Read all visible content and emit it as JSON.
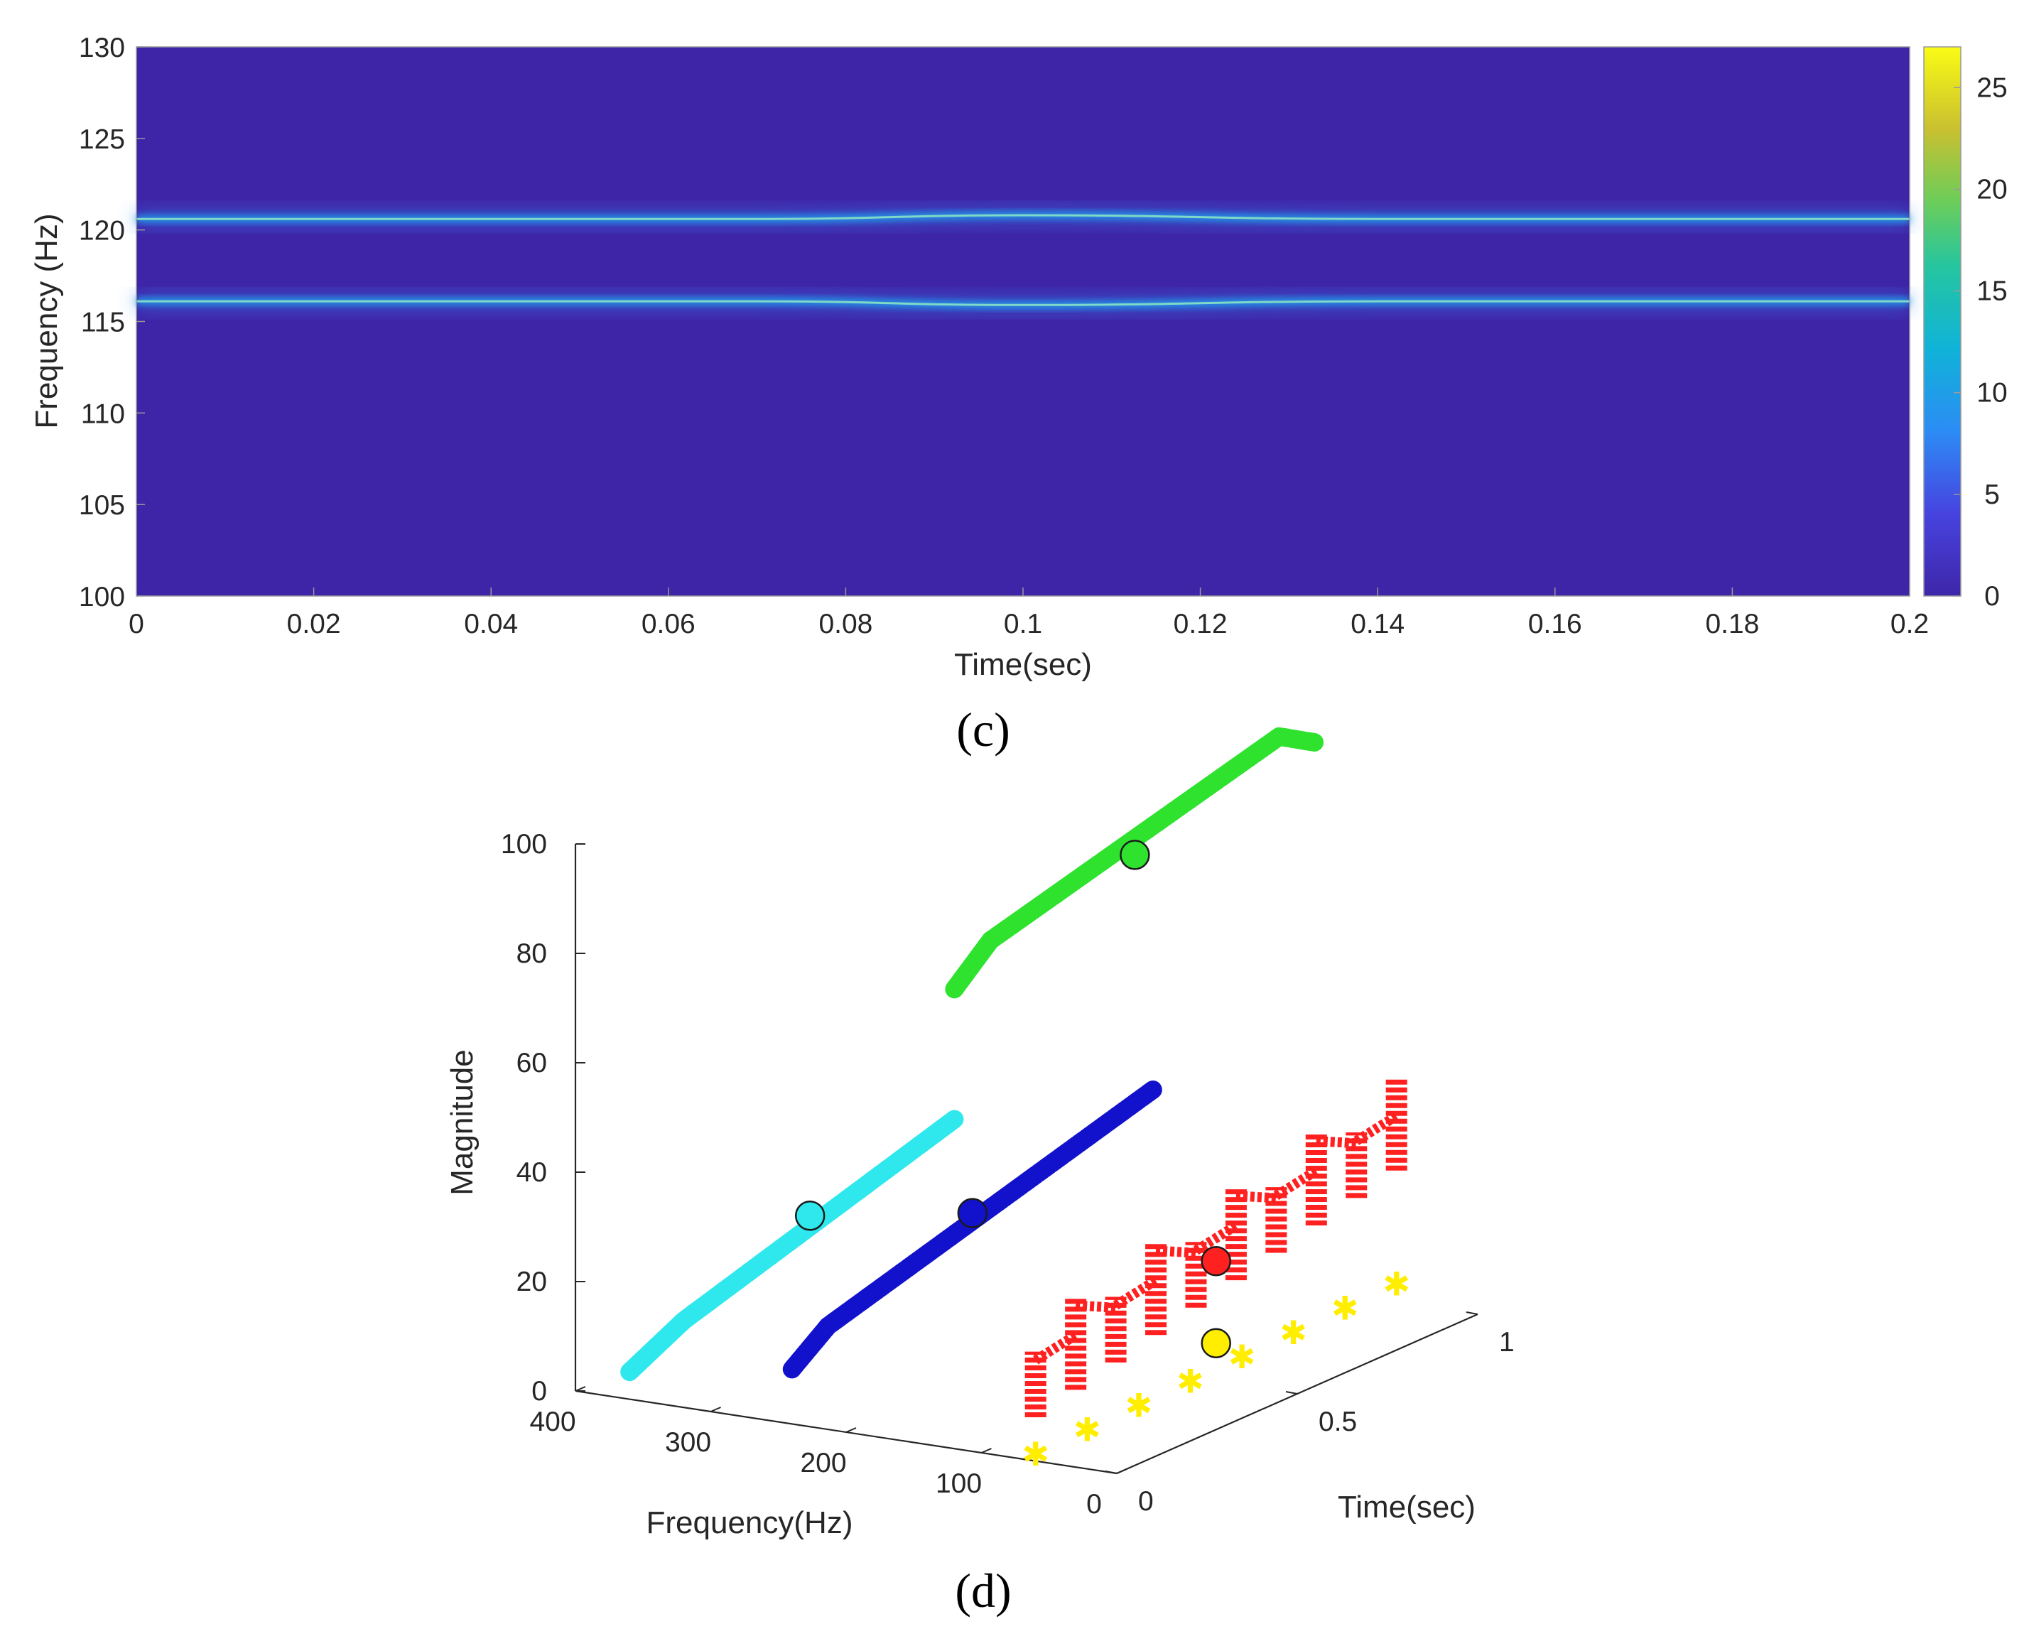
{
  "chart_data": [
    {
      "panel": "(c)",
      "type": "heatmap",
      "xlabel": "Time(sec)",
      "ylabel": "Frequency (Hz)",
      "xlim": [
        0,
        0.2
      ],
      "ylim": [
        100,
        130
      ],
      "x_ticks": [
        "0",
        "0.02",
        "0.04",
        "0.06",
        "0.08",
        "0.1",
        "0.12",
        "0.14",
        "0.16",
        "0.18",
        "0.2"
      ],
      "y_ticks": [
        "100",
        "105",
        "110",
        "115",
        "120",
        "125",
        "130"
      ],
      "colorbar": {
        "range": [
          0,
          27
        ],
        "ticks": [
          "0",
          "5",
          "10",
          "15",
          "20",
          "25"
        ]
      },
      "series": [
        {
          "name": "ridge-1",
          "x": [
            0,
            0.07,
            0.1,
            0.14,
            0.2
          ],
          "y": [
            120.6,
            120.6,
            120.8,
            120.6,
            120.6
          ],
          "intensity": 12
        },
        {
          "name": "ridge-2",
          "x": [
            0,
            0.07,
            0.1,
            0.14,
            0.2
          ],
          "y": [
            116.1,
            116.1,
            115.9,
            116.1,
            116.1
          ],
          "intensity": 12
        }
      ]
    },
    {
      "panel": "(d)",
      "type": "scatter",
      "projection": "3d",
      "xlabel": "Frequency(Hz)",
      "ylabel": "Time(sec)",
      "zlabel": "Magnitude",
      "xlim": [
        0,
        400
      ],
      "ylim": [
        0,
        1
      ],
      "zlim": [
        0,
        100
      ],
      "x_ticks": [
        "400",
        "300",
        "200",
        "100",
        "0"
      ],
      "y_ticks": [
        "0",
        "0.5",
        "1"
      ],
      "z_ticks": [
        "0",
        "20",
        "40",
        "60",
        "80",
        "100"
      ],
      "series": [
        {
          "name": "cyan",
          "color": "#2ee8ee",
          "freq": 360,
          "t": [
            0,
            0.15,
            0.9
          ],
          "mag": [
            5,
            10,
            25
          ],
          "centroid": [
            360,
            0.5,
            19
          ]
        },
        {
          "name": "blue",
          "color": "#1212cc",
          "freq": 240,
          "t": [
            0,
            0.1,
            1.0
          ],
          "mag": [
            10,
            15,
            32
          ],
          "centroid": [
            240,
            0.5,
            24
          ]
        },
        {
          "name": "green",
          "color": "#2ee22e",
          "freq": 120,
          "t": [
            0,
            0.1,
            0.9,
            1.0
          ],
          "mag": [
            84,
            90,
            104,
            100
          ],
          "centroid": [
            120,
            0.5,
            94
          ]
        },
        {
          "name": "red",
          "color": "#ff2020",
          "freq": 60,
          "t": [
            0,
            1
          ],
          "mag": [
            14,
            30
          ],
          "centroid": [
            60,
            0.5,
            22
          ]
        },
        {
          "name": "yellow",
          "color": "#ffee00",
          "freq": 60,
          "t": [
            0,
            1
          ],
          "mag": [
            1,
            3
          ],
          "centroid": [
            60,
            0.5,
            7
          ]
        }
      ]
    }
  ]
}
